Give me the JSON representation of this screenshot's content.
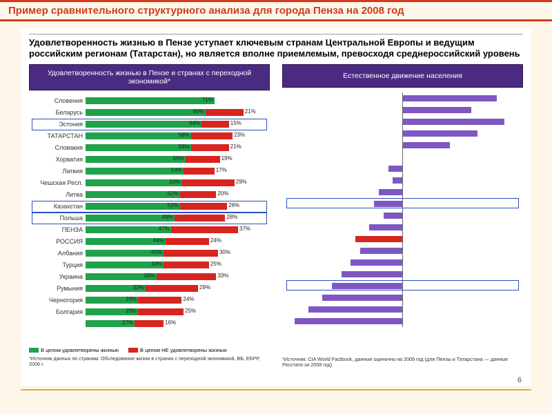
{
  "title": "Пример сравнительного структурного анализа для города Пенза на 2008 год",
  "subtitle": "Удовлетворенность жизнью в Пензе уступает ключевым странам Центральной Европы и ведущим российским регионам (Татарстан), но является вполне приемлемым, превосходя среднероссийский уровень",
  "page_number": "6",
  "left_panel": {
    "header": "Удовлетворенность жизнью в Пензе и странах с переходной экономикой*",
    "type": "stacked-bar-horizontal",
    "unit": "%",
    "colors": {
      "satisfied": "#1fa24a",
      "unsatisfied": "#d6261f",
      "background": "#ffffff"
    },
    "label_fontsize": 9,
    "value_fontsize": 8,
    "rows": [
      {
        "label": "Словения",
        "g": 71,
        "r": 0,
        "hl": false
      },
      {
        "label": "Беларусь",
        "g": 66,
        "r": 21,
        "hl": false
      },
      {
        "label": "Эстония",
        "g": 64,
        "r": 15,
        "hl": true
      },
      {
        "label": "ТАТАРСТАН",
        "g": 58,
        "r": 23,
        "hl": false
      },
      {
        "label": "Словакия",
        "g": 58,
        "r": 21,
        "hl": false
      },
      {
        "label": "Хорватия",
        "g": 55,
        "r": 19,
        "hl": false
      },
      {
        "label": "Латвия",
        "g": 54,
        "r": 17,
        "hl": false
      },
      {
        "label": "Чешская Респ.",
        "g": 53,
        "r": 29,
        "hl": false
      },
      {
        "label": "Литва",
        "g": 52,
        "r": 20,
        "hl": false
      },
      {
        "label": "Казахстан",
        "g": 52,
        "r": 26,
        "hl": true
      },
      {
        "label": "Польша",
        "g": 49,
        "r": 28,
        "hl": true
      },
      {
        "label": "ПЕНЗА",
        "g": 47,
        "r": 37,
        "hl": false
      },
      {
        "label": "РОССИЯ",
        "g": 44,
        "r": 24,
        "hl": false
      },
      {
        "label": "Албания",
        "g": 43,
        "r": 30,
        "hl": false
      },
      {
        "label": "Турция",
        "g": 43,
        "r": 25,
        "hl": false
      },
      {
        "label": "Украина",
        "g": 39,
        "r": 33,
        "hl": false
      },
      {
        "label": "Румыния",
        "g": 33,
        "r": 29,
        "hl": false
      },
      {
        "label": "Черногория",
        "g": 29,
        "r": 24,
        "hl": false
      },
      {
        "label": "Болгария",
        "g": 29,
        "r": 25,
        "hl": false
      },
      {
        "label": "",
        "g": 27,
        "r": 16,
        "hl": false
      }
    ],
    "legend": {
      "sat": "В целом удовлетворены жизнью",
      "unsat": "В целом НЕ удовлетворены жизнью"
    },
    "source": "*Источник данных по странам: Обследование жизни в странах с переходной экономикой, ВБ, ЕБРР, 2006 г."
  },
  "right_panel": {
    "header": "Естественное движение населения",
    "type": "diverging-bar-horizontal",
    "colors": {
      "bar": "#7e57c2",
      "highlight_bar": "#d6261f",
      "axis": "#666666",
      "background": "#ffffff"
    },
    "axis_range": [
      -50,
      60
    ],
    "rows": [
      {
        "neg": 0,
        "pos": 48,
        "red": false
      },
      {
        "neg": 0,
        "pos": 35,
        "red": false
      },
      {
        "neg": 0,
        "pos": 52,
        "red": false
      },
      {
        "neg": 0,
        "pos": 38,
        "red": false
      },
      {
        "neg": 0,
        "pos": 24,
        "red": false
      },
      {
        "neg": 0,
        "pos": 0,
        "red": false
      },
      {
        "neg": 6,
        "pos": 0,
        "red": false
      },
      {
        "neg": 4,
        "pos": 0,
        "red": false
      },
      {
        "neg": 10,
        "pos": 0,
        "red": false
      },
      {
        "neg": 12,
        "pos": 0,
        "red": false
      },
      {
        "neg": 8,
        "pos": 0,
        "red": false
      },
      {
        "neg": 14,
        "pos": 0,
        "red": false
      },
      {
        "neg": 20,
        "pos": 0,
        "red": true
      },
      {
        "neg": 18,
        "pos": 0,
        "red": false
      },
      {
        "neg": 22,
        "pos": 0,
        "red": false
      },
      {
        "neg": 26,
        "pos": 0,
        "red": false
      },
      {
        "neg": 30,
        "pos": 0,
        "red": false
      },
      {
        "neg": 34,
        "pos": 0,
        "red": false
      },
      {
        "neg": 40,
        "pos": 0,
        "red": false
      },
      {
        "neg": 46,
        "pos": 0,
        "red": false
      }
    ],
    "highlight_rows": [
      9,
      16
    ],
    "source": "*Источник: CIA World Factbook, данные оценочно на 2009 год (для Пензы и Татарстана — данные Росстата за 2008 год)"
  }
}
